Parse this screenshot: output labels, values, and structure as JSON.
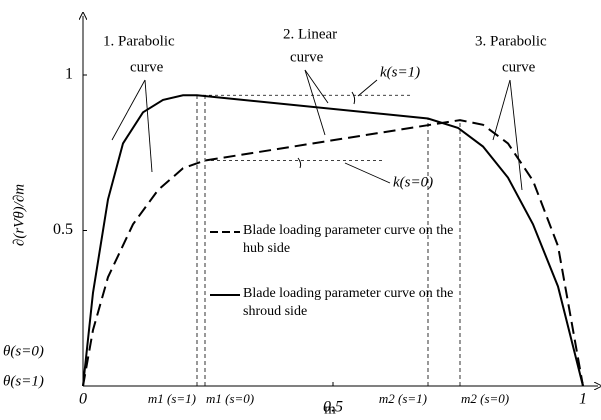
{
  "chart_data": {
    "type": "line",
    "xlabel": "m",
    "ylabel": "∂(rVθ)/∂m",
    "xlim": [
      0,
      1.03
    ],
    "ylim": [
      0,
      1.19
    ],
    "xticks": [
      0,
      0.5,
      1,
      {
        "value": 0.228,
        "label": "m1 (s=1)"
      },
      {
        "value": 0.244,
        "label": "m1 (s=0)"
      },
      {
        "value": 0.69,
        "label": "m2 (s=1)"
      },
      {
        "value": 0.754,
        "label": "m2 (s=0)"
      }
    ],
    "yticks": [
      0.5,
      1
    ],
    "series": [
      {
        "name": "Blade loading parameter curve on the hub side",
        "color": "#000",
        "dash": true,
        "x": [
          0,
          0.02,
          0.05,
          0.1,
          0.15,
          0.2,
          0.244,
          0.754,
          0.8,
          0.85,
          0.9,
          0.95,
          1
        ],
        "values": [
          0,
          0.18,
          0.35,
          0.52,
          0.63,
          0.7,
          0.725,
          0.855,
          0.84,
          0.78,
          0.66,
          0.45,
          0
        ]
      },
      {
        "name": "Blade loading parameter curve on the shroud side",
        "color": "#000",
        "dash": false,
        "x": [
          0,
          0.02,
          0.05,
          0.08,
          0.12,
          0.16,
          0.2,
          0.228,
          0.69,
          0.75,
          0.8,
          0.85,
          0.9,
          0.95,
          1
        ],
        "values": [
          0,
          0.3,
          0.6,
          0.78,
          0.88,
          0.92,
          0.935,
          0.935,
          0.86,
          0.83,
          0.77,
          0.67,
          0.52,
          0.32,
          0
        ]
      }
    ],
    "annotations": [
      "1. Parabolic",
      "curve",
      "2. Linear",
      "curve",
      "3. Parabolic",
      "curve",
      "k(s=1)",
      "k(s=0)",
      "θ(s=0)",
      "θ(s=1)"
    ]
  }
}
